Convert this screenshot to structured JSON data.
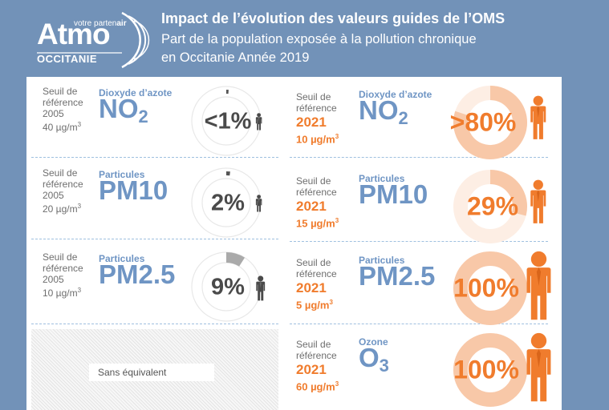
{
  "colors": {
    "background": "#7292b8",
    "orange": "#f07c2d",
    "peach": "#f8c8a8",
    "blue_text": "#6f95c4",
    "grey_text": "#4a4a4a"
  },
  "logo": {
    "name": "Atmo",
    "tagline_prefix": "votre parten",
    "tagline_suffix": "air",
    "region": "OCCITANIE"
  },
  "header": {
    "title": "Impact de l’évolution des valeurs guides de l’OMS",
    "subtitle_line1": "Part de la population exposée à la pollution chronique",
    "subtitle_line2": "en Occitanie Année 2019"
  },
  "rows_2005": [
    {
      "seuil_line1": "Seuil de",
      "seuil_line2": "référence",
      "year": "2005",
      "value": "40 µg/m",
      "value_sup": "3",
      "category": "Dioxyde d’azote",
      "pollutant": "NO",
      "pollutant_sub": "2",
      "percent": "<1%",
      "exposed_fraction": 0.005
    },
    {
      "seuil_line1": "Seuil de",
      "seuil_line2": "référence",
      "year": "2005",
      "value": "20 µg/m",
      "value_sup": "3",
      "category": "Particules",
      "pollutant": "PM10",
      "pollutant_sub": "",
      "percent": "2%",
      "exposed_fraction": 0.02
    },
    {
      "seuil_line1": "Seuil de",
      "seuil_line2": "référence",
      "year": "2005",
      "value": "10 µg/m",
      "value_sup": "3",
      "category": "Particules",
      "pollutant": "PM2.5",
      "pollutant_sub": "",
      "percent": "9%",
      "exposed_fraction": 0.09
    }
  ],
  "rows_2021": [
    {
      "seuil_line1": "Seuil de",
      "seuil_line2": "référence",
      "year": "2021",
      "value": "10 µg/m",
      "value_sup": "3",
      "category": "Dioxyde d’azote",
      "pollutant": "NO",
      "pollutant_sub": "2",
      "percent": ">80%",
      "exposed_fraction": 0.8
    },
    {
      "seuil_line1": "Seuil de",
      "seuil_line2": "référence",
      "year": "2021",
      "value": "15 µg/m",
      "value_sup": "3",
      "category": "Particules",
      "pollutant": "PM10",
      "pollutant_sub": "",
      "percent": "29%",
      "exposed_fraction": 0.29
    },
    {
      "seuil_line1": "Seuil de",
      "seuil_line2": "référence",
      "year": "2021",
      "value": "5 µg/m",
      "value_sup": "3",
      "category": "Particules",
      "pollutant": "PM2.5",
      "pollutant_sub": "",
      "percent": "100%",
      "exposed_fraction": 1.0
    },
    {
      "seuil_line1": "Seuil de",
      "seuil_line2": "référence",
      "year": "2021",
      "value": "60 µg/m",
      "value_sup": "3",
      "category": "Ozone",
      "pollutant": "O",
      "pollutant_sub": "3",
      "percent": "100%",
      "exposed_fraction": 1.0
    }
  ],
  "no_equivalent": "Sans équivalent"
}
